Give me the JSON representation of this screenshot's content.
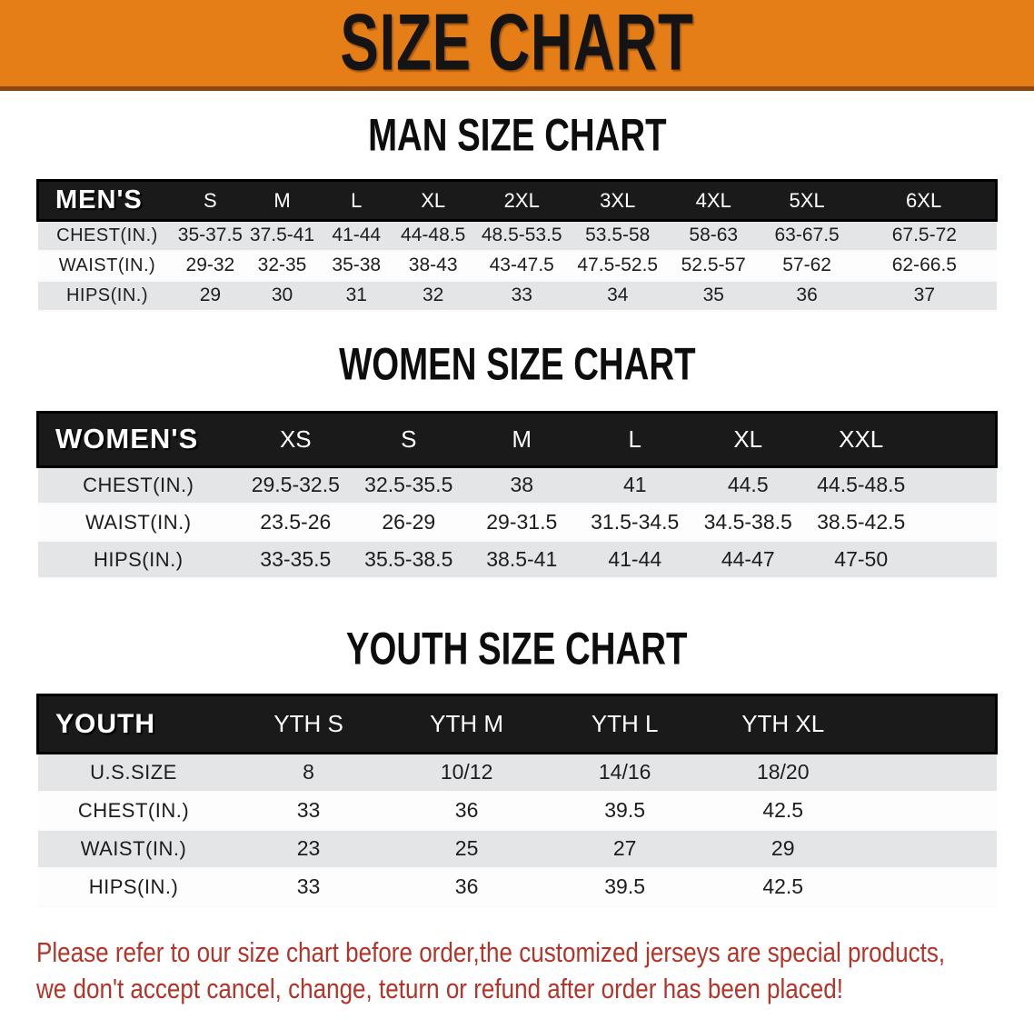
{
  "banner": {
    "title": "SIZE CHART"
  },
  "sections": [
    {
      "heading": "MAN SIZE CHART",
      "group_label": "MEN'S",
      "columns": [
        "S",
        "M",
        "L",
        "XL",
        "2XL",
        "3XL",
        "4XL",
        "5XL",
        "6XL"
      ],
      "rows": [
        {
          "label": "CHEST(IN.)",
          "values": [
            "35-37.5",
            "37.5-41",
            "41-44",
            "44-48.5",
            "48.5-53.5",
            "53.5-58",
            "58-63",
            "63-67.5",
            "67.5-72"
          ]
        },
        {
          "label": "WAIST(IN.)",
          "values": [
            "29-32",
            "32-35",
            "35-38",
            "38-43",
            "43-47.5",
            "47.5-52.5",
            "52.5-57",
            "57-62",
            "62-66.5"
          ]
        },
        {
          "label": "HIPS(IN.)",
          "values": [
            "29",
            "30",
            "31",
            "32",
            "33",
            "34",
            "35",
            "36",
            "37"
          ]
        }
      ]
    },
    {
      "heading": "WOMEN SIZE CHART",
      "group_label": "WOMEN'S",
      "columns": [
        "XS",
        "S",
        "M",
        "L",
        "XL",
        "XXL"
      ],
      "rows": [
        {
          "label": "CHEST(IN.)",
          "values": [
            "29.5-32.5",
            "32.5-35.5",
            "38",
            "41",
            "44.5",
            "44.5-48.5"
          ]
        },
        {
          "label": "WAIST(IN.)",
          "values": [
            "23.5-26",
            "26-29",
            "29-31.5",
            "31.5-34.5",
            "34.5-38.5",
            "38.5-42.5"
          ]
        },
        {
          "label": "HIPS(IN.)",
          "values": [
            "33-35.5",
            "35.5-38.5",
            "38.5-41",
            "41-44",
            "44-47",
            "47-50"
          ]
        }
      ]
    },
    {
      "heading": "YOUTH SIZE CHART",
      "group_label": "YOUTH",
      "columns": [
        "YTH S",
        "YTH M",
        "YTH L",
        "YTH XL"
      ],
      "rows": [
        {
          "label": "U.S.SIZE",
          "values": [
            "8",
            "10/12",
            "14/16",
            "18/20"
          ]
        },
        {
          "label": "CHEST(IN.)",
          "values": [
            "33",
            "36",
            "39.5",
            "42.5"
          ]
        },
        {
          "label": "WAIST(IN.)",
          "values": [
            "23",
            "25",
            "27",
            "29"
          ]
        },
        {
          "label": "HIPS(IN.)",
          "values": [
            "33",
            "36",
            "39.5",
            "42.5"
          ]
        }
      ]
    }
  ],
  "disclaimer": {
    "line1": "Please refer to our size chart before order,the customized jerseys are special products,",
    "line2": "we don't accept cancel, change, teturn or refund after order has been placed!"
  },
  "colors": {
    "banner_orange": "#E67E17",
    "banner_border": "#8C4510",
    "header_black": "#1A1A1A",
    "row_gray": "#E4E5E7",
    "row_white": "#FDFDFD",
    "text_dark": "#1D1D1D",
    "disclaimer_red": "#B2352A"
  }
}
